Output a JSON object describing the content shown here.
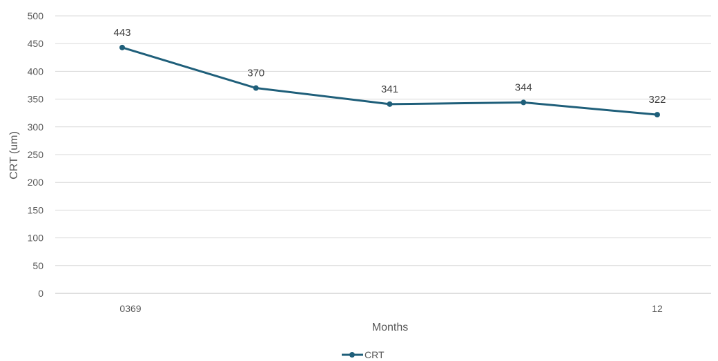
{
  "chart_data": {
    "type": "line",
    "title": "",
    "xlabel": "Months",
    "ylabel": "CRT (um)",
    "x_tick_labels": [
      "0369",
      "12"
    ],
    "ylim": [
      0,
      500
    ],
    "y_ticks": [
      0,
      50,
      100,
      150,
      200,
      250,
      300,
      350,
      400,
      450,
      500
    ],
    "grid": true,
    "legend_position": "bottom",
    "series": [
      {
        "name": "CRT",
        "color": "#1f5f7a",
        "values": [
          443,
          370,
          341,
          344,
          322
        ],
        "data_labels": [
          "443",
          "370",
          "341",
          "344",
          "322"
        ]
      }
    ]
  }
}
